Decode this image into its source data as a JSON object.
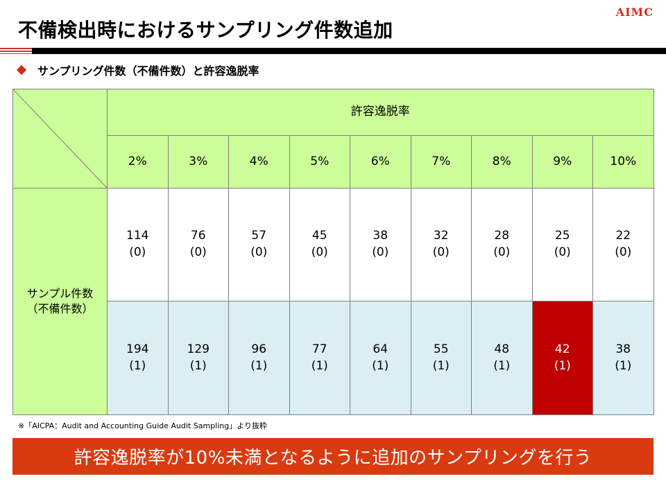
{
  "logo": "AIMC",
  "title": "不備検出時におけるサンプリング件数追加",
  "subheading": "サンプリング件数（不備件数）と許容逸脱率",
  "table": {
    "header_group": "許容逸脱率",
    "row_label_line1": "サンプル件数",
    "row_label_line2": "（不備件数）",
    "rates": [
      "2%",
      "3%",
      "4%",
      "5%",
      "6%",
      "7%",
      "8%",
      "9%",
      "10%"
    ],
    "row1": {
      "counts": [
        "114",
        "76",
        "57",
        "45",
        "38",
        "32",
        "28",
        "25",
        "22"
      ],
      "defects": [
        "(0)",
        "(0)",
        "(0)",
        "(0)",
        "(0)",
        "(0)",
        "(0)",
        "(0)",
        "(0)"
      ]
    },
    "row2": {
      "counts": [
        "194",
        "129",
        "96",
        "77",
        "64",
        "55",
        "48",
        "42",
        "38"
      ],
      "defects": [
        "(1)",
        "(1)",
        "(1)",
        "(1)",
        "(1)",
        "(1)",
        "(1)",
        "(1)",
        "(1)"
      ]
    },
    "highlight_color": "#c00000",
    "header_color": "#ccff99",
    "row2_color": "#daeef3"
  },
  "note": "※「AICPA：Audit and Accounting Guide Audit Sampling」より抜粋",
  "banner": "許容逸脱率が10%未満となるように追加のサンプリングを行う",
  "banner_color": "#d93a10"
}
